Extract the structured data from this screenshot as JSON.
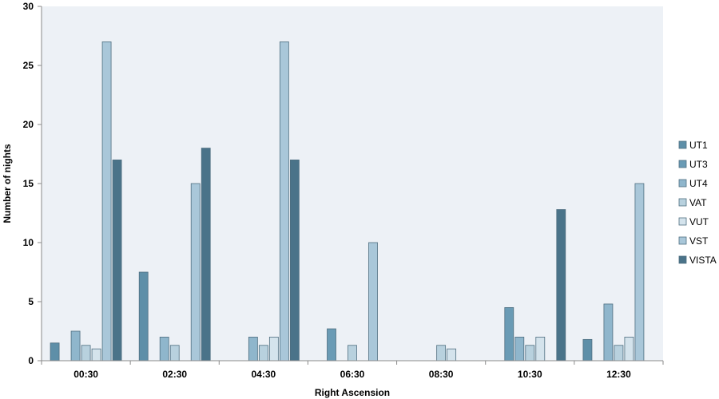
{
  "chart_data": {
    "type": "bar",
    "title": "",
    "xlabel": "Right Ascension",
    "ylabel": "Number of nights",
    "ylim": [
      0,
      30
    ],
    "yticks": [
      "0",
      "5",
      "10",
      "15",
      "20",
      "25",
      "30"
    ],
    "categories": [
      "00:30",
      "02:30",
      "04:30",
      "06:30",
      "08:30",
      "10:30",
      "12:30"
    ],
    "grid": false,
    "legend_position": "right",
    "plot_background": "#edf1f6",
    "series": [
      {
        "name": "UT1",
        "color": "#5e8fa8",
        "values": [
          1.5,
          7.5,
          0,
          0,
          0,
          0,
          1.8
        ]
      },
      {
        "name": "UT3",
        "color": "#6a9bb5",
        "values": [
          0,
          0,
          0,
          2.7,
          0,
          4.5,
          0
        ]
      },
      {
        "name": "UT4",
        "color": "#8fb6cc",
        "values": [
          2.5,
          2.0,
          2.0,
          0,
          0,
          2.0,
          4.8
        ]
      },
      {
        "name": "VAT",
        "color": "#b8d1de",
        "values": [
          1.3,
          1.3,
          1.3,
          1.3,
          1.3,
          1.3,
          1.3
        ]
      },
      {
        "name": "VUT",
        "color": "#d4e3ec",
        "values": [
          1.0,
          0,
          2.0,
          0,
          1.0,
          2.0,
          2.0
        ]
      },
      {
        "name": "VST",
        "color": "#a9c7d9",
        "values": [
          27,
          15,
          27,
          10,
          0,
          0,
          15
        ]
      },
      {
        "name": "VISTA",
        "color": "#4a7389",
        "values": [
          17,
          18,
          17,
          0,
          0,
          12.8,
          0
        ]
      }
    ]
  }
}
